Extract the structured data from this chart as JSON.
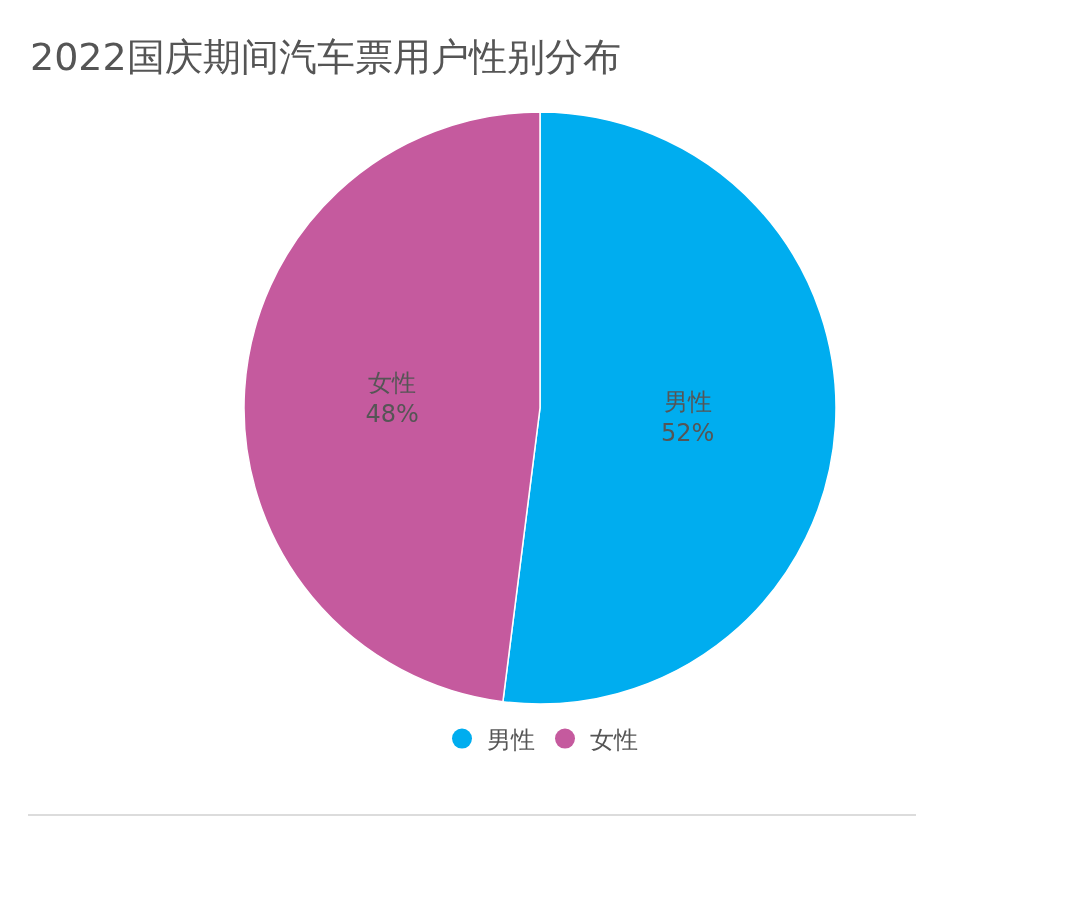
{
  "chart_data": {
    "type": "pie",
    "title": "2022国庆期间汽车票用户性别分布",
    "categories": [
      "男性",
      "女性"
    ],
    "values": [
      52,
      48
    ],
    "colors": [
      "#00adef",
      "#c55a9e"
    ],
    "value_labels": [
      "52%",
      "48%"
    ],
    "legend": "bottom"
  }
}
